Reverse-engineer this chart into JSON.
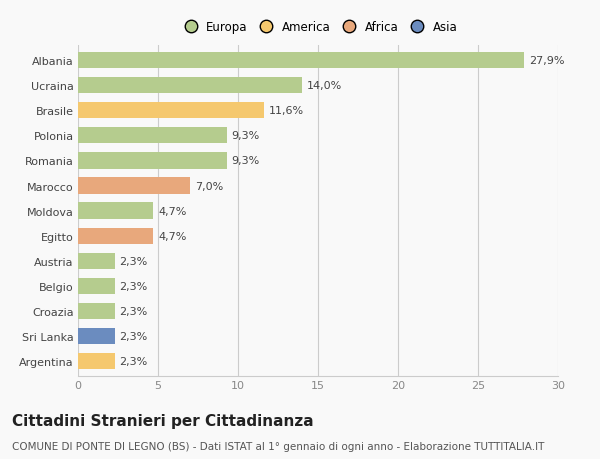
{
  "categories": [
    "Albania",
    "Ucraina",
    "Brasile",
    "Polonia",
    "Romania",
    "Marocco",
    "Moldova",
    "Egitto",
    "Austria",
    "Belgio",
    "Croazia",
    "Sri Lanka",
    "Argentina"
  ],
  "values": [
    27.9,
    14.0,
    11.6,
    9.3,
    9.3,
    7.0,
    4.7,
    4.7,
    2.3,
    2.3,
    2.3,
    2.3,
    2.3
  ],
  "labels": [
    "27,9%",
    "14,0%",
    "11,6%",
    "9,3%",
    "9,3%",
    "7,0%",
    "4,7%",
    "4,7%",
    "2,3%",
    "2,3%",
    "2,3%",
    "2,3%",
    "2,3%"
  ],
  "colors": [
    "#b5cc8e",
    "#b5cc8e",
    "#f5c86e",
    "#b5cc8e",
    "#b5cc8e",
    "#e8a87c",
    "#b5cc8e",
    "#e8a87c",
    "#b5cc8e",
    "#b5cc8e",
    "#b5cc8e",
    "#6b8cbf",
    "#f5c86e"
  ],
  "legend_labels": [
    "Europa",
    "America",
    "Africa",
    "Asia"
  ],
  "legend_colors": [
    "#b5cc8e",
    "#f5c86e",
    "#e8a87c",
    "#6b8cbf"
  ],
  "xlim": [
    0,
    30
  ],
  "xticks": [
    0,
    5,
    10,
    15,
    20,
    25,
    30
  ],
  "title": "Cittadini Stranieri per Cittadinanza",
  "subtitle": "COMUNE DI PONTE DI LEGNO (BS) - Dati ISTAT al 1° gennaio di ogni anno - Elaborazione TUTTITALIA.IT",
  "background_color": "#f9f9f9",
  "bar_height": 0.65,
  "label_fontsize": 8,
  "ytick_fontsize": 8,
  "xtick_fontsize": 8,
  "title_fontsize": 11,
  "subtitle_fontsize": 7.5
}
